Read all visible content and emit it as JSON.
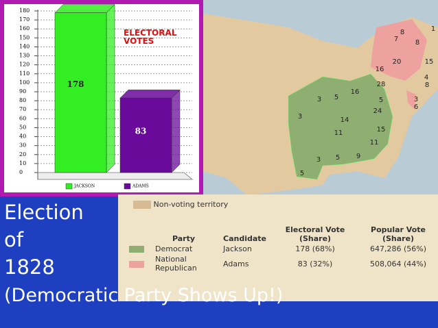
{
  "chart_data": {
    "type": "bar",
    "title": "ELECTORAL VOTES",
    "series": [
      {
        "name": "JACKSON",
        "color": "#33ee22",
        "values": [
          178
        ]
      },
      {
        "name": "ADAMS",
        "color": "#6a0a9a",
        "values": [
          83
        ]
      }
    ],
    "ylim": [
      0,
      180
    ],
    "yticks": [
      0,
      10,
      20,
      30,
      40,
      50,
      60,
      70,
      80,
      90,
      100,
      110,
      120,
      130,
      140,
      150,
      160,
      170,
      180
    ],
    "grid": true
  },
  "slide": {
    "lines": [
      "Election",
      "of",
      "1828",
      "(Democratic Party Shows Up!)"
    ]
  },
  "map": {
    "labels": [
      1,
      8,
      7,
      8,
      15,
      20,
      16,
      28,
      4,
      8,
      3,
      6,
      5,
      24,
      16,
      3,
      5,
      3,
      14,
      15,
      11,
      11,
      3,
      5,
      9,
      5
    ]
  },
  "legend": {
    "non_voting": "Non-voting territory",
    "headers": [
      "Party",
      "Candidate",
      "Electoral Vote (Share)",
      "Popular Vote (Share)"
    ],
    "rows": [
      [
        "Democrat",
        "Jackson",
        "178 (68%)",
        "647,286 (56%)"
      ],
      [
        "National Republican",
        "Adams",
        "83 (32%)",
        "508,064 (44%)"
      ]
    ]
  }
}
